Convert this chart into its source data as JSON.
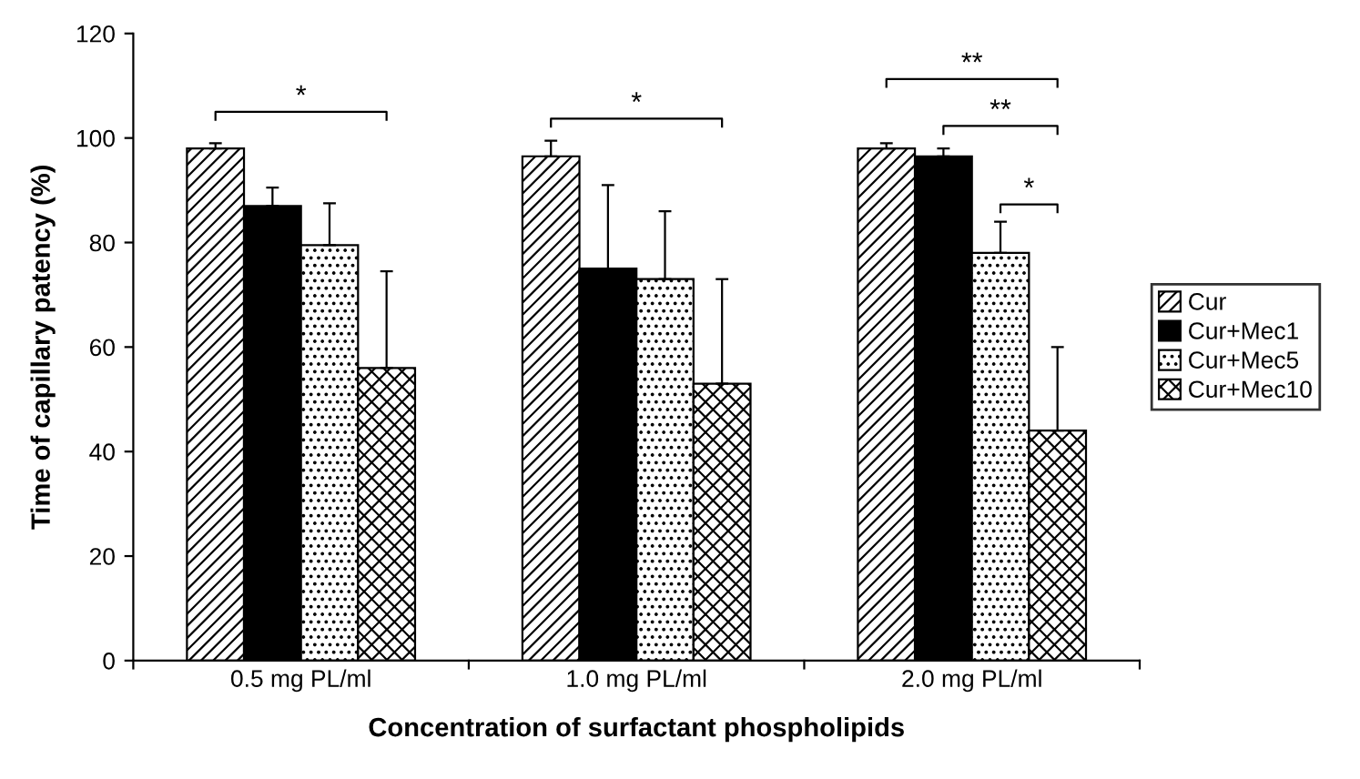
{
  "chart_data": {
    "type": "bar",
    "xlabel": "Concentration of surfactant phospholipids",
    "ylabel": "Time of capillary patency (%)",
    "categories": [
      "0.5 mg PL/ml",
      "1.0 mg PL/ml",
      "2.0 mg PL/ml"
    ],
    "series": [
      {
        "name": "Cur",
        "color": "#000000",
        "values": [
          98,
          96.5,
          98
        ],
        "errors": [
          [
            98,
            99
          ],
          [
            96.5,
            99.5
          ],
          [
            98,
            99
          ]
        ]
      },
      {
        "name": "Cur+Mec1",
        "color": "#000000",
        "values": [
          87,
          75,
          96.5
        ],
        "errors": [
          [
            87,
            90.5
          ],
          [
            75,
            91
          ],
          [
            96.5,
            98
          ]
        ]
      },
      {
        "name": "Cur+Mec5",
        "color": "#000000",
        "values": [
          79.5,
          73,
          78
        ],
        "errors": [
          [
            79.5,
            87.5
          ],
          [
            73,
            86
          ],
          [
            78,
            84
          ]
        ]
      },
      {
        "name": "Cur+Mec10",
        "color": "#000000",
        "values": [
          56,
          53,
          44
        ],
        "errors": [
          [
            56,
            74.5
          ],
          [
            53,
            73
          ],
          [
            44,
            60
          ]
        ]
      }
    ],
    "ylim": [
      0,
      120
    ],
    "yticks": [
      0,
      20,
      40,
      60,
      80,
      100,
      120
    ],
    "grid": false,
    "legend": "right",
    "annotations": [
      "*",
      "*",
      "**",
      "**",
      "*"
    ]
  }
}
